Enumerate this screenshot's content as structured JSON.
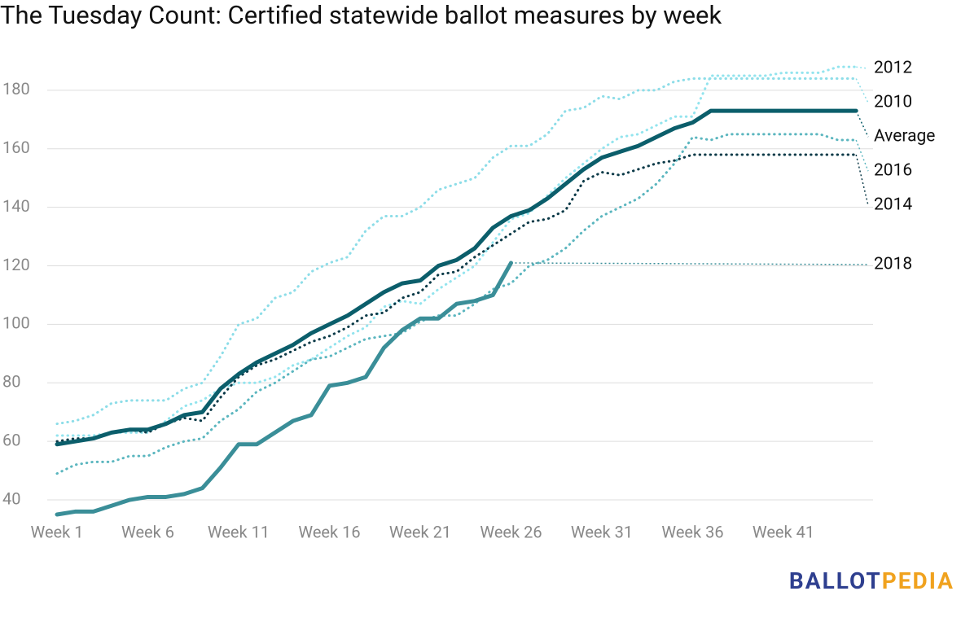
{
  "chart_data": {
    "type": "line",
    "title": "The Tuesday Count: Certified statewide ballot measures by week",
    "categories": [
      "Week 1",
      null,
      null,
      null,
      null,
      "Week 6",
      null,
      null,
      null,
      null,
      "Week 11",
      null,
      null,
      null,
      null,
      "Week 16",
      null,
      null,
      null,
      null,
      "Week 21",
      null,
      null,
      null,
      null,
      "Week 26",
      null,
      null,
      null,
      null,
      "Week 31",
      null,
      null,
      null,
      null,
      "Week 36",
      null,
      null,
      null,
      null,
      "Week 41",
      null,
      null,
      null,
      null
    ],
    "series": [
      {
        "name": "2012",
        "color": "#93e4ee",
        "style": "dotted",
        "values": [
          62,
          62,
          62,
          63,
          63,
          63,
          67,
          72,
          74,
          78,
          80,
          80,
          82,
          86,
          88,
          92,
          96,
          99,
          106,
          108,
          107,
          112,
          116,
          120,
          128,
          136,
          138,
          144,
          150,
          155,
          160,
          164,
          165,
          168,
          171,
          171,
          185,
          185,
          185,
          185,
          186,
          186,
          186,
          188,
          188
        ]
      },
      {
        "name": "2010",
        "color": "#8ddde8",
        "style": "dotted",
        "values": [
          66,
          67,
          69,
          73,
          74,
          74,
          74,
          78,
          80,
          89,
          100,
          102,
          109,
          111,
          118,
          121,
          123,
          132,
          137,
          137,
          140,
          146,
          148,
          150,
          157,
          161,
          161,
          165,
          173,
          174,
          178,
          177,
          180,
          180,
          183,
          184,
          184,
          184,
          184,
          184,
          184,
          184,
          184,
          184,
          184
        ]
      },
      {
        "name": "2016",
        "color": "#5bb6bf",
        "style": "dotted",
        "values": [
          49,
          52,
          53,
          53,
          55,
          55,
          58,
          60,
          61,
          67,
          71,
          77,
          80,
          84,
          88,
          89,
          92,
          95,
          96,
          97,
          101,
          103,
          103,
          107,
          112,
          114,
          120,
          122,
          126,
          132,
          137,
          140,
          143,
          148,
          155,
          164,
          163,
          165,
          165,
          165,
          165,
          165,
          165,
          163,
          163
        ]
      },
      {
        "name": "2014",
        "color": "#0b3a48",
        "style": "dotted",
        "values": [
          60,
          61,
          61,
          63,
          64,
          63,
          66,
          68,
          67,
          75,
          82,
          86,
          88,
          91,
          94,
          96,
          99,
          103,
          104,
          109,
          111,
          117,
          118,
          123,
          127,
          131,
          135,
          136,
          139,
          149,
          152,
          151,
          153,
          155,
          156,
          158,
          158,
          158,
          158,
          158,
          158,
          158,
          158,
          158,
          158
        ]
      },
      {
        "name": "2018",
        "color": "#3a8e98",
        "style": "solid",
        "values": [
          35,
          36,
          36,
          38,
          40,
          41,
          41,
          42,
          44,
          51,
          59,
          59,
          63,
          67,
          69,
          79,
          80,
          82,
          92,
          98,
          102,
          102,
          107,
          108,
          110,
          121,
          null,
          null,
          null,
          null,
          null,
          null,
          null,
          null,
          null,
          null,
          null,
          null,
          null,
          null,
          null,
          null,
          null,
          null,
          null
        ]
      },
      {
        "name": "Average",
        "color": "#0b5e6b",
        "style": "solid",
        "values": [
          59,
          60,
          61,
          63,
          64,
          64,
          66,
          69,
          70,
          78,
          83,
          87,
          90,
          93,
          97,
          100,
          103,
          107,
          111,
          114,
          115,
          120,
          122,
          126,
          133,
          137,
          139,
          143,
          148,
          153,
          157,
          159,
          161,
          164,
          167,
          169,
          173,
          173,
          173,
          173,
          173,
          173,
          173,
          173,
          173
        ]
      }
    ],
    "ylim": [
      34,
      190
    ],
    "yticks": [
      40,
      60,
      80,
      100,
      120,
      140,
      160,
      180
    ],
    "grid": true,
    "logo": [
      "BALLOT",
      "PEDIA"
    ],
    "logo_colors": [
      "#2e3f8f",
      "#f0a21e"
    ]
  }
}
